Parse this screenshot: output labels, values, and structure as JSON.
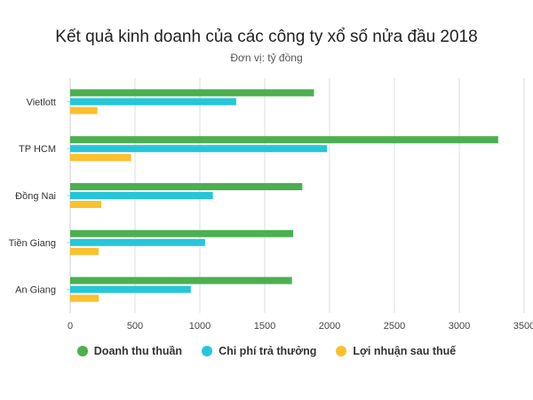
{
  "chart_data": {
    "type": "bar",
    "orientation": "horizontal",
    "title": "Kết quả kinh doanh của các công ty xổ số nửa đầu 2018",
    "subtitle": "Đơn vị: tỷ đồng",
    "categories": [
      "Vietlott",
      "TP HCM",
      "Đồng Nai",
      "Tiền Giang",
      "An Giang"
    ],
    "series": [
      {
        "name": "Doanh thu thuần",
        "color": "#4caf50",
        "values": [
          1880,
          3300,
          1790,
          1720,
          1710
        ]
      },
      {
        "name": "Chi phí trả thưởng",
        "color": "#26c6da",
        "values": [
          1280,
          1980,
          1100,
          1040,
          930
        ]
      },
      {
        "name": "Lợi nhuận sau thuế",
        "color": "#fbc02d",
        "values": [
          210,
          470,
          240,
          220,
          220
        ]
      }
    ],
    "xlim": [
      0,
      3500
    ],
    "xticks": [
      "0",
      "500",
      "1000",
      "1500",
      "2000",
      "2500",
      "3000",
      "3500"
    ],
    "grid": true,
    "legend_position": "bottom"
  }
}
